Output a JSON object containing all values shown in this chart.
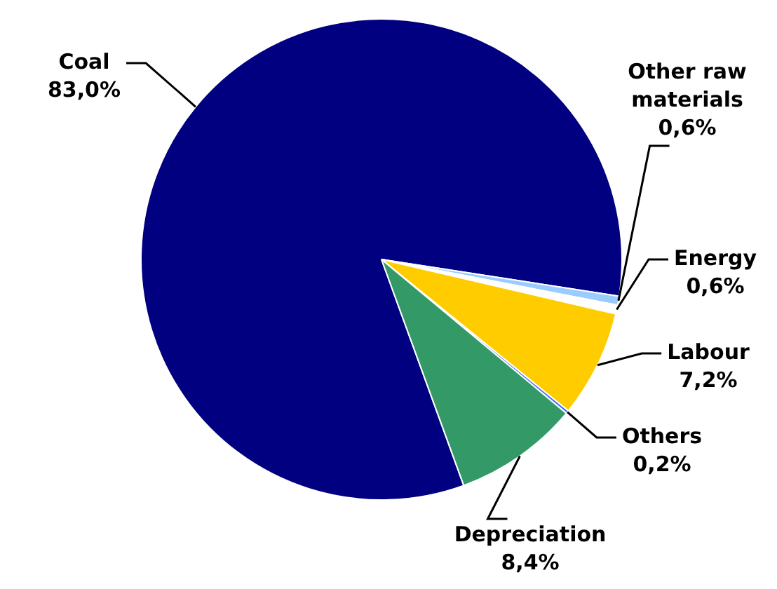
{
  "chart_data": {
    "type": "pie",
    "categories": [
      "Coal",
      "Other raw materials",
      "Energy",
      "Labour",
      "Others",
      "Depreciation"
    ],
    "values": [
      83.0,
      0.6,
      0.6,
      7.2,
      0.2,
      8.4
    ],
    "colors": [
      "#000080",
      "#99ccff",
      "#ffffff",
      "#ffcc00",
      "#3366ff",
      "#339966"
    ],
    "value_labels": [
      "83,0%",
      "0,6%",
      "0,6%",
      "7,2%",
      "0,2%",
      "8,4%"
    ],
    "legend": false
  }
}
